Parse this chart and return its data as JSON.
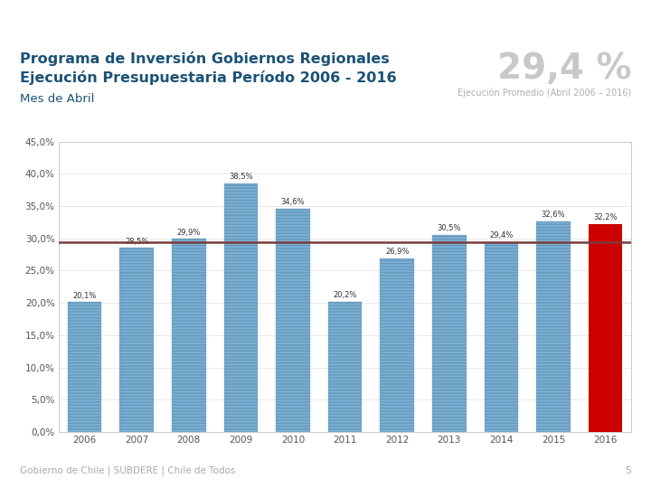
{
  "title_line1": "Programa de Inversión Gobiernos Regionales",
  "title_line2": "Ejecución Presupuestaria Período 2006 - 2016",
  "subtitle": "Mes de Abril",
  "big_percent": "29,4 %",
  "big_percent_label": "Ejecución Promedio (Abril 2006 – 2016)",
  "years": [
    2006,
    2007,
    2008,
    2009,
    2010,
    2011,
    2012,
    2013,
    2014,
    2015,
    2016
  ],
  "values": [
    20.1,
    28.5,
    29.9,
    38.5,
    34.6,
    20.2,
    26.9,
    30.5,
    29.4,
    32.6,
    32.2
  ],
  "bar_colors": [
    "#7bafd4",
    "#7bafd4",
    "#7bafd4",
    "#7bafd4",
    "#7bafd4",
    "#7bafd4",
    "#7bafd4",
    "#7bafd4",
    "#7bafd4",
    "#7bafd4",
    "#cc0000"
  ],
  "average_line": 29.4,
  "average_line_color": "#7B3B3B",
  "labels": [
    "20,1%",
    "28,5%",
    "29,9%",
    "38,5%",
    "34,6%",
    "20,2%",
    "26,9%",
    "30,5%",
    "29,4%",
    "32,6%",
    "32,2%"
  ],
  "ylim": [
    0,
    45
  ],
  "yticks": [
    0.0,
    5.0,
    10.0,
    15.0,
    20.0,
    25.0,
    30.0,
    35.0,
    40.0,
    45.0
  ],
  "ytick_labels": [
    "0,0%",
    "5,0%",
    "10,0%",
    "15,0%",
    "20,0%",
    "25,0%",
    "30,0%",
    "35,0%",
    "40,0%",
    "45,0%"
  ],
  "title_color": "#1a5276",
  "subtitle_color": "#1a5276",
  "bg_color": "#FFFFFF",
  "chart_bg": "#FFFFFF",
  "footer": "Gobierno de Chile | SUBDERE | Chile de Todos",
  "page_number": "5",
  "top_bar_blue": "#1F5C99",
  "top_bar_red": "#CC0000",
  "bar_hatch_color": "#6699bb",
  "label_fontsize": 6.0,
  "axis_tick_fontsize": 7.5
}
